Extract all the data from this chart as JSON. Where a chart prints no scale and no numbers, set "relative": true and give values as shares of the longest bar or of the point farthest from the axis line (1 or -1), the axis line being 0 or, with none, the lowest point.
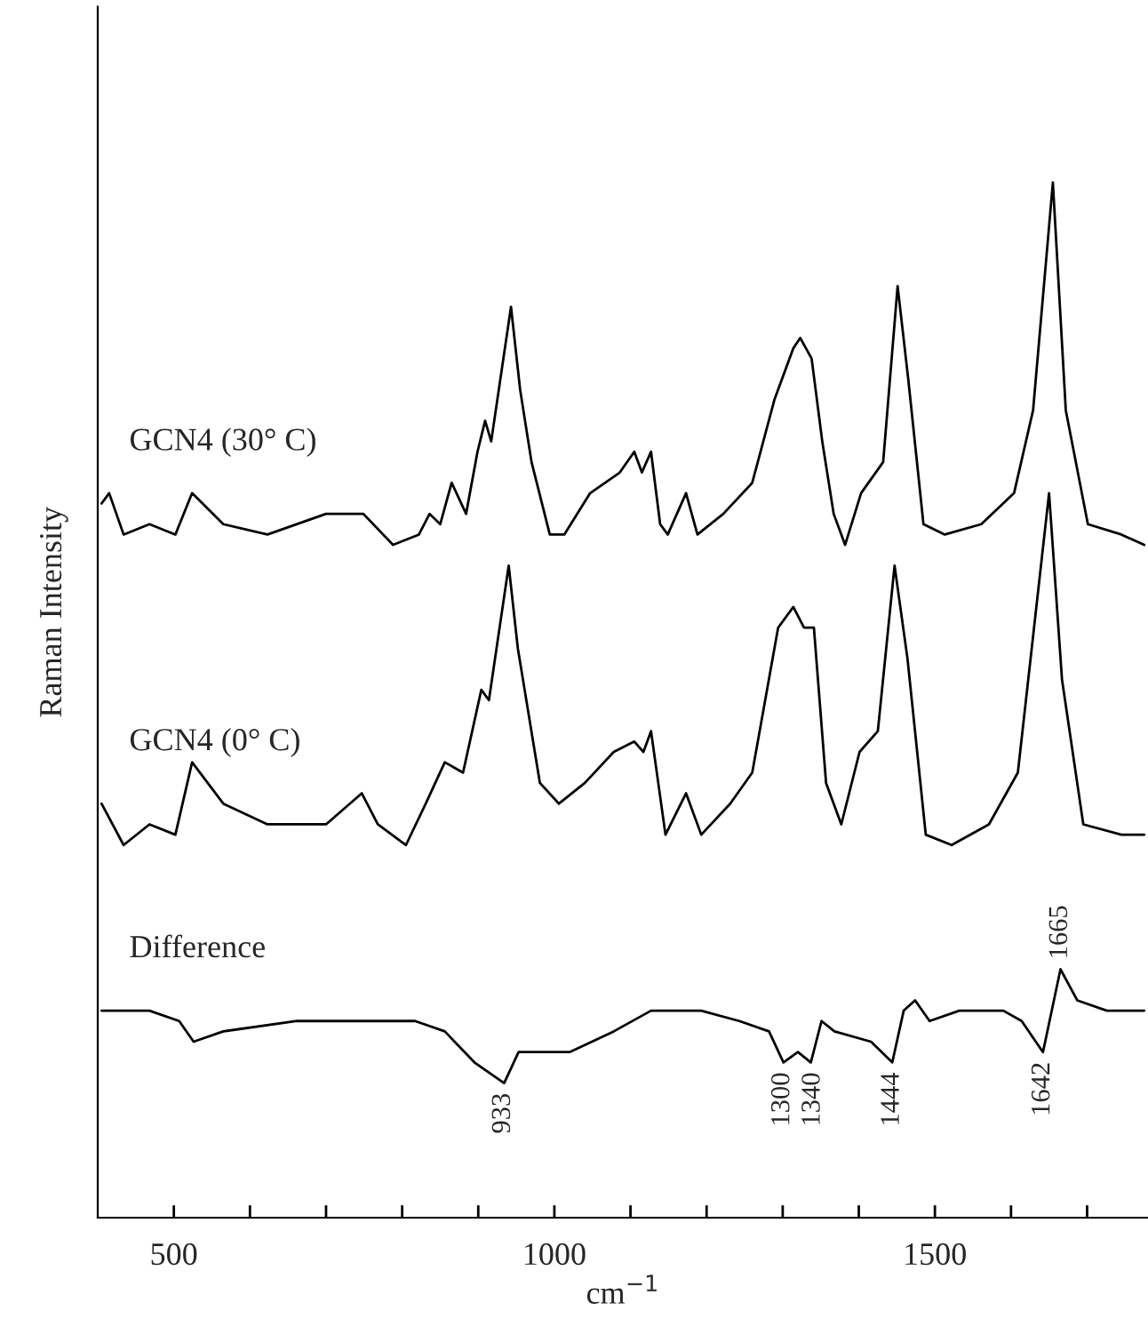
{
  "chart_data": {
    "type": "line",
    "relative": true,
    "xlabel": "cm$^{−1}$",
    "ylabel": "Raman Intensity",
    "xlim": [
      400,
      1780
    ],
    "xticks": [
      500,
      {
        "value": 600,
        "label": null
      },
      {
        "value": 700,
        "label": null
      },
      {
        "value": 800,
        "label": null
      },
      {
        "value": 900,
        "label": null
      },
      1000,
      {
        "value": 1100,
        "label": null
      },
      {
        "value": 1200,
        "label": null
      },
      {
        "value": 1300,
        "label": null
      },
      {
        "value": 1400,
        "label": null
      },
      1500,
      {
        "value": 1600,
        "label": null
      },
      {
        "value": 1700,
        "label": null
      }
    ],
    "grid": false,
    "legend": false,
    "marker": "none",
    "line_style": "solid",
    "series": [
      {
        "name": "GCN4 (30° C)",
        "color": "#000000",
        "x": [
          405,
          415,
          434,
          468,
          502,
          524,
          565,
          623,
          700,
          749,
          788,
          822,
          836,
          850,
          865,
          884,
          899,
          909,
          917,
          943,
          955,
          970,
          994,
          1013,
          1047,
          1086,
          1105,
          1115,
          1127,
          1139,
          1149,
          1173,
          1188,
          1222,
          1260,
          1289,
          1314,
          1323,
          1338,
          1352,
          1367,
          1382,
          1403,
          1432,
          1451,
          1465,
          1485,
          1513,
          1561,
          1604,
          1629,
          1655,
          1672,
          1701,
          1745,
          1775
        ],
        "values": [
          0.69,
          0.7,
          0.66,
          0.67,
          0.66,
          0.7,
          0.67,
          0.66,
          0.68,
          0.68,
          0.65,
          0.66,
          0.68,
          0.67,
          0.71,
          0.68,
          0.74,
          0.77,
          0.75,
          0.88,
          0.8,
          0.73,
          0.66,
          0.66,
          0.7,
          0.72,
          0.74,
          0.72,
          0.74,
          0.67,
          0.66,
          0.7,
          0.66,
          0.68,
          0.71,
          0.79,
          0.84,
          0.85,
          0.83,
          0.75,
          0.68,
          0.65,
          0.7,
          0.73,
          0.9,
          0.81,
          0.67,
          0.66,
          0.67,
          0.7,
          0.78,
          1.0,
          0.78,
          0.67,
          0.66,
          0.65
        ]
      },
      {
        "name": "GCN4 (0° C)",
        "color": "#000000",
        "x": [
          405,
          434,
          468,
          502,
          524,
          565,
          623,
          700,
          747,
          768,
          805,
          831,
          856,
          880,
          904,
          914,
          940,
          952,
          981,
          1006,
          1040,
          1078,
          1105,
          1117,
          1127,
          1146,
          1173,
          1193,
          1231,
          1260,
          1294,
          1314,
          1328,
          1341,
          1357,
          1377,
          1401,
          1425,
          1447,
          1464,
          1488,
          1522,
          1571,
          1609,
          1650,
          1667,
          1695,
          1745,
          1775
        ],
        "values": [
          0.4,
          0.36,
          0.38,
          0.37,
          0.44,
          0.4,
          0.38,
          0.38,
          0.41,
          0.38,
          0.36,
          0.4,
          0.44,
          0.43,
          0.51,
          0.5,
          0.63,
          0.55,
          0.42,
          0.4,
          0.42,
          0.45,
          0.46,
          0.45,
          0.47,
          0.37,
          0.41,
          0.37,
          0.4,
          0.43,
          0.57,
          0.59,
          0.57,
          0.57,
          0.42,
          0.38,
          0.45,
          0.47,
          0.63,
          0.54,
          0.37,
          0.36,
          0.38,
          0.43,
          0.7,
          0.52,
          0.38,
          0.37,
          0.37
        ]
      },
      {
        "name": "Difference",
        "color": "#000000",
        "x": [
          405,
          468,
          507,
          526,
          565,
          662,
          759,
          817,
          856,
          895,
          934,
          953,
          1020,
          1078,
          1127,
          1193,
          1243,
          1282,
          1301,
          1320,
          1337,
          1351,
          1368,
          1416,
          1444,
          1459,
          1474,
          1493,
          1532,
          1590,
          1614,
          1642,
          1665,
          1687,
          1726,
          1775
        ],
        "values": [
          0.2,
          0.2,
          0.19,
          0.17,
          0.18,
          0.19,
          0.19,
          0.19,
          0.18,
          0.15,
          0.13,
          0.16,
          0.16,
          0.18,
          0.2,
          0.2,
          0.19,
          0.18,
          0.15,
          0.16,
          0.15,
          0.19,
          0.18,
          0.17,
          0.15,
          0.2,
          0.21,
          0.19,
          0.2,
          0.2,
          0.19,
          0.16,
          0.24,
          0.21,
          0.2,
          0.2
        ]
      }
    ],
    "annotations": [
      {
        "text": "933",
        "x": 933,
        "y": 0.13
      },
      {
        "text": "1300",
        "x": 1300,
        "y": 0.15
      },
      {
        "text": "1340",
        "x": 1340,
        "y": 0.15
      },
      {
        "text": "1444",
        "x": 1444,
        "y": 0.15
      },
      {
        "text": "1642",
        "x": 1642,
        "y": 0.16
      },
      {
        "text": "1665",
        "x": 1665,
        "y": 0.24
      }
    ]
  }
}
